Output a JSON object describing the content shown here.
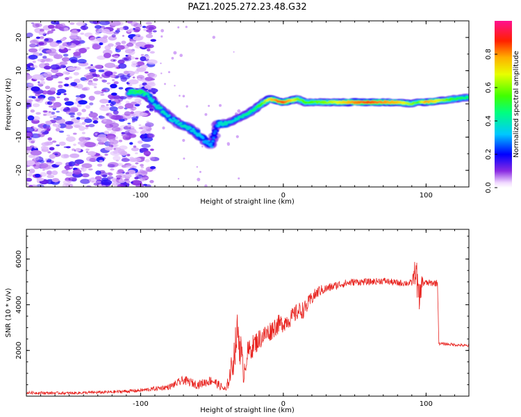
{
  "title": "PAZ1.2025.272.23.48.G32",
  "colors": {
    "snr_line": "#e8231f",
    "signal_core": "#ff0000",
    "signal_mid": "#00d000",
    "signal_edge": "#0000ff",
    "noise": "#7b2cff"
  },
  "chart_data": [
    {
      "type": "heatmap",
      "name": "spectrogram",
      "xlabel": "Height of straight line (km)",
      "ylabel": "Frequency (Hz)",
      "xlim": [
        -180,
        130
      ],
      "ylim": [
        -25,
        25
      ],
      "xticks": [
        -100,
        0,
        100
      ],
      "yticks": [
        -20,
        -10,
        0,
        10,
        20
      ],
      "xtick_labels": [
        "-100",
        "0",
        "100"
      ],
      "ytick_labels": [
        "-20",
        "-10",
        "0",
        "10",
        "20"
      ],
      "colorbar": {
        "label": "Normalized spectral amplitude",
        "range": [
          0,
          1
        ],
        "ticks": [
          "0.0",
          "0.2",
          "0.4",
          "0.6",
          "0.8"
        ],
        "tick_values": [
          0.0,
          0.2,
          0.4,
          0.6,
          0.8
        ],
        "colormap": "rainbow"
      },
      "signal_track": [
        {
          "x": -108,
          "f": 3.5,
          "a": 0.45
        },
        {
          "x": -100,
          "f": 3.5,
          "a": 0.5
        },
        {
          "x": -95,
          "f": 2.5,
          "a": 0.4
        },
        {
          "x": -90,
          "f": 0,
          "a": 0.35
        },
        {
          "x": -85,
          "f": -2,
          "a": 0.4
        },
        {
          "x": -80,
          "f": -4,
          "a": 0.35
        },
        {
          "x": -75,
          "f": -5.5,
          "a": 0.35
        },
        {
          "x": -70,
          "f": -6.5,
          "a": 0.4
        },
        {
          "x": -65,
          "f": -7.5,
          "a": 0.35
        },
        {
          "x": -60,
          "f": -9,
          "a": 0.35
        },
        {
          "x": -55,
          "f": -11,
          "a": 0.3
        },
        {
          "x": -50,
          "f": -12.5,
          "a": 0.3
        },
        {
          "x": -47,
          "f": -7,
          "a": 0.25
        },
        {
          "x": -45,
          "f": -6,
          "a": 0.35
        },
        {
          "x": -40,
          "f": -6,
          "a": 0.4
        },
        {
          "x": -35,
          "f": -5,
          "a": 0.35
        },
        {
          "x": -30,
          "f": -4,
          "a": 0.4
        },
        {
          "x": -25,
          "f": -3,
          "a": 0.45
        },
        {
          "x": -20,
          "f": -1.5,
          "a": 0.45
        },
        {
          "x": -15,
          "f": 0,
          "a": 0.55
        },
        {
          "x": -10,
          "f": 1.5,
          "a": 0.7
        },
        {
          "x": -5,
          "f": 1,
          "a": 0.8
        },
        {
          "x": 0,
          "f": 0.5,
          "a": 0.85
        },
        {
          "x": 5,
          "f": 1,
          "a": 0.75
        },
        {
          "x": 10,
          "f": 1.5,
          "a": 0.6
        },
        {
          "x": 15,
          "f": 0.5,
          "a": 0.55
        },
        {
          "x": 20,
          "f": 0.5,
          "a": 0.55
        },
        {
          "x": 30,
          "f": 0.5,
          "a": 0.6
        },
        {
          "x": 40,
          "f": 0.5,
          "a": 0.7
        },
        {
          "x": 50,
          "f": 0.5,
          "a": 0.8
        },
        {
          "x": 60,
          "f": 0.5,
          "a": 0.85
        },
        {
          "x": 70,
          "f": 0.5,
          "a": 0.8
        },
        {
          "x": 80,
          "f": 0.5,
          "a": 0.75
        },
        {
          "x": 90,
          "f": 0,
          "a": 0.6
        },
        {
          "x": 95,
          "f": 0.5,
          "a": 0.55
        },
        {
          "x": 100,
          "f": 0.5,
          "a": 0.8
        },
        {
          "x": 110,
          "f": 1,
          "a": 0.65
        },
        {
          "x": 120,
          "f": 1.5,
          "a": 0.5
        },
        {
          "x": 130,
          "f": 2,
          "a": 0.45
        }
      ],
      "noise_region_x": [
        -180,
        -90
      ]
    },
    {
      "type": "line",
      "name": "snr",
      "xlabel": "Height of straight line (km)",
      "ylabel": "SNR (10 * v/v)",
      "xlim": [
        -180,
        130
      ],
      "ylim": [
        0,
        7300
      ],
      "xticks": [
        -100,
        0,
        100
      ],
      "yticks": [
        2000,
        4000,
        6000
      ],
      "xtick_labels": [
        "-100",
        "0",
        "100"
      ],
      "ytick_labels": [
        "2000",
        "4000",
        "6000"
      ],
      "series": [
        {
          "name": "SNR",
          "x": [
            -180,
            -150,
            -120,
            -100,
            -80,
            -70,
            -60,
            -50,
            -40,
            -35,
            -32,
            -30,
            -28,
            -25,
            -20,
            -15,
            -10,
            -5,
            0,
            5,
            10,
            15,
            20,
            25,
            30,
            40,
            50,
            60,
            70,
            80,
            90,
            93,
            95,
            97,
            100,
            108,
            109,
            110,
            120,
            130
          ],
          "values": [
            150,
            130,
            180,
            250,
            400,
            700,
            500,
            700,
            250,
            1600,
            2900,
            2100,
            1000,
            1900,
            2300,
            2600,
            2800,
            3100,
            3200,
            3400,
            3700,
            3800,
            4300,
            4600,
            4700,
            4900,
            5000,
            5000,
            5050,
            4950,
            4950,
            5600,
            4000,
            5000,
            4950,
            4950,
            2300,
            2300,
            2250,
            2200
          ],
          "noise": [
            60,
            60,
            70,
            80,
            120,
            200,
            180,
            220,
            150,
            700,
            900,
            900,
            500,
            500,
            500,
            450,
            450,
            450,
            400,
            380,
            400,
            380,
            300,
            250,
            200,
            180,
            160,
            150,
            150,
            150,
            150,
            700,
            900,
            300,
            150,
            150,
            60,
            60,
            60,
            60
          ]
        }
      ]
    }
  ]
}
